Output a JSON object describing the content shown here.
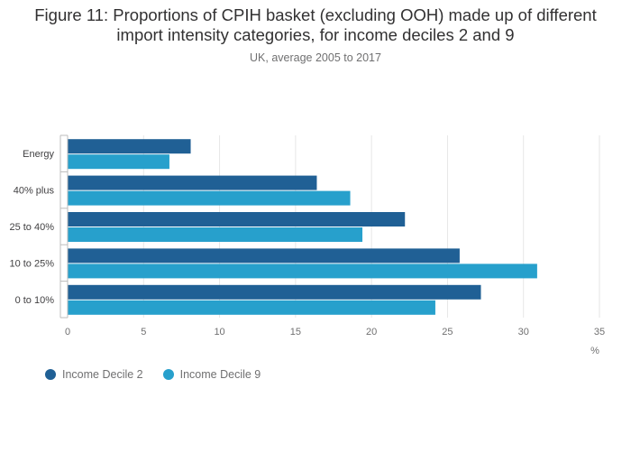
{
  "title_lines": [
    "Figure 11: Proportions of CPIH basket (excluding OOH) made up of different",
    "import intensity categories, for income deciles 2 and 9"
  ],
  "subtitle": "UK, average 2005 to 2017",
  "colors": {
    "series1": "#206095",
    "series2": "#27a0cc",
    "grid": "#e6e6e6",
    "axis": "#bcbcbc"
  },
  "chart_data": {
    "type": "bar",
    "orientation": "horizontal",
    "title": "Figure 11: Proportions of CPIH basket (excluding OOH) made up of different import intensity categories, for income deciles 2 and 9",
    "subtitle": "UK, average 2005 to 2017",
    "categories": [
      "Energy",
      "40% plus",
      "25 to 40%",
      "10 to 25%",
      "0 to 10%"
    ],
    "series": [
      {
        "name": "Income Decile 2",
        "values": [
          8.1,
          16.4,
          22.2,
          25.8,
          27.2
        ]
      },
      {
        "name": "Income Decile 9",
        "values": [
          6.7,
          18.6,
          19.4,
          30.9,
          24.2
        ]
      }
    ],
    "xlabel": "%",
    "ylabel": "",
    "xlim": [
      0,
      35
    ],
    "xticks": [
      0,
      5,
      10,
      15,
      20,
      25,
      30,
      35
    ],
    "grid": true,
    "legend_position": "bottom-left"
  }
}
